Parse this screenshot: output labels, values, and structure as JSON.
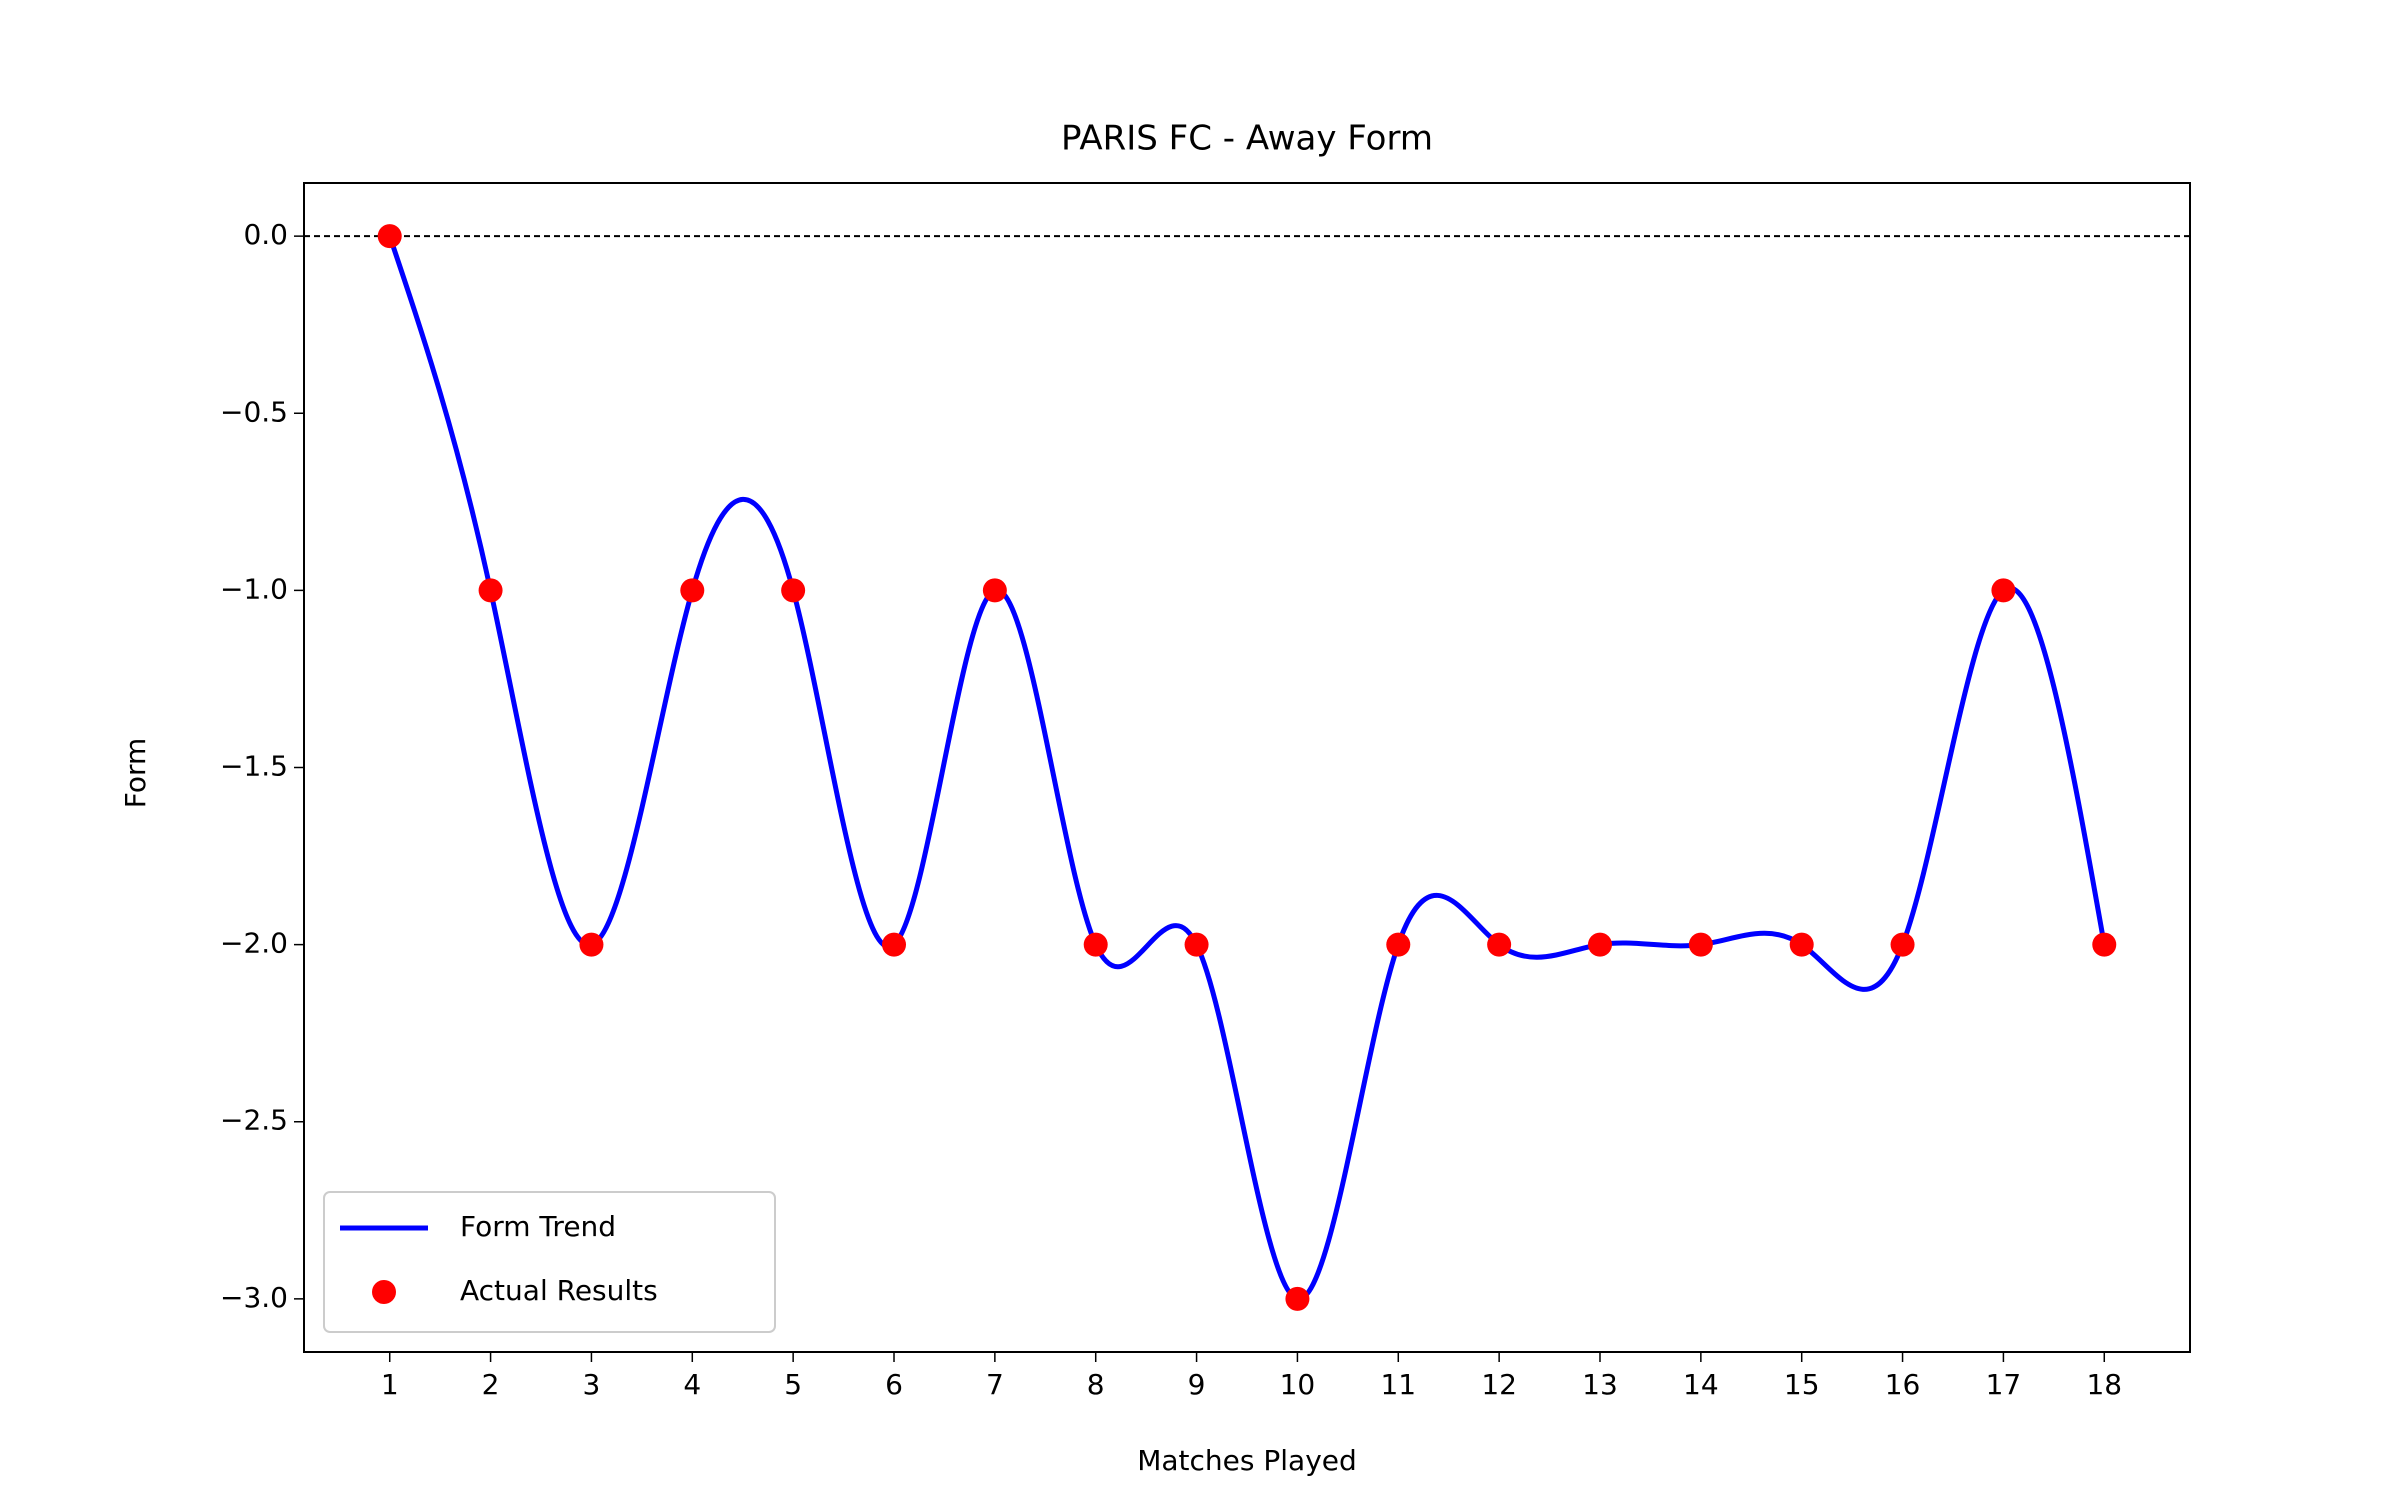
{
  "chart_data": {
    "type": "line",
    "title": "PARIS FC - Away Form",
    "x_label": "Matches Played",
    "y_label": "Form",
    "x": [
      1,
      2,
      3,
      4,
      5,
      6,
      7,
      8,
      9,
      10,
      11,
      12,
      13,
      14,
      15,
      16,
      17,
      18
    ],
    "series": [
      {
        "name": "Form Trend",
        "color": "#0000ff",
        "style": "smooth-line",
        "values": [
          0,
          -1,
          -2,
          -1,
          -1,
          -2,
          -1,
          -2,
          -2,
          -3,
          -2,
          -2,
          -2,
          -2,
          -2,
          -2,
          -1,
          -2
        ]
      },
      {
        "name": "Actual Results",
        "color": "#ff0000",
        "style": "scatter",
        "values": [
          0,
          -1,
          -2,
          -1,
          -1,
          -2,
          -1,
          -2,
          -2,
          -3,
          -2,
          -2,
          -2,
          -2,
          -2,
          -2,
          -1,
          -2
        ]
      }
    ],
    "reference_line": 0,
    "xlim": [
      0.15,
      18.85
    ],
    "ylim": [
      -3.15,
      0.15
    ],
    "xticks": [
      1,
      2,
      3,
      4,
      5,
      6,
      7,
      8,
      9,
      10,
      11,
      12,
      13,
      14,
      15,
      16,
      17,
      18
    ],
    "yticks": [
      {
        "value": 0,
        "label": "0.0"
      },
      {
        "value": -0.5,
        "label": "−0.5"
      },
      {
        "value": -1,
        "label": "−1.0"
      },
      {
        "value": -1.5,
        "label": "−1.5"
      },
      {
        "value": -2,
        "label": "−2.0"
      },
      {
        "value": -2.5,
        "label": "−2.5"
      },
      {
        "value": -3,
        "label": "−3.0"
      }
    ],
    "grid": false,
    "legend": "lower left"
  }
}
